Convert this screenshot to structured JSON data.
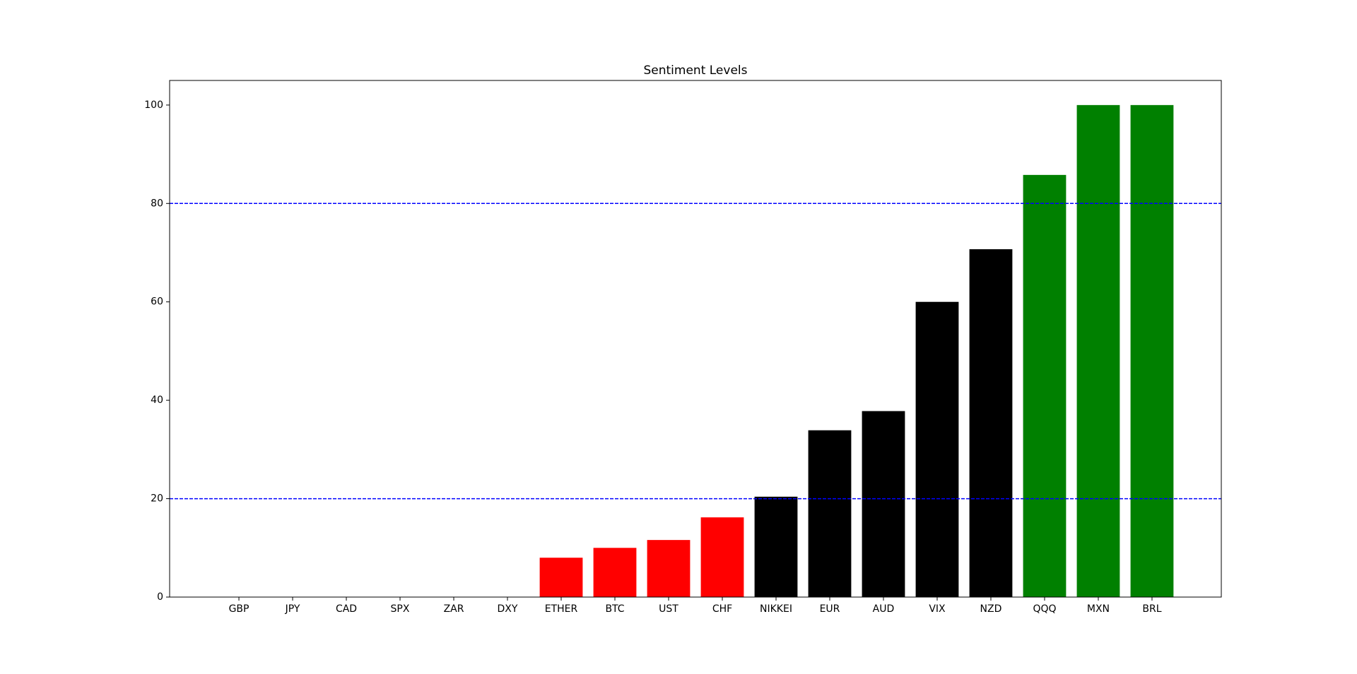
{
  "chart_data": {
    "type": "bar",
    "title": "Sentiment Levels",
    "categories": [
      "GBP",
      "JPY",
      "CAD",
      "SPX",
      "ZAR",
      "DXY",
      "ETHER",
      "BTC",
      "UST",
      "CHF",
      "NIKKEI",
      "EUR",
      "AUD",
      "VIX",
      "NZD",
      "QQQ",
      "MXN",
      "BRL"
    ],
    "values": [
      0,
      0,
      0,
      0,
      0,
      0,
      8,
      10,
      11.6,
      16.2,
      20.4,
      33.9,
      37.8,
      60,
      70.7,
      85.8,
      100,
      100
    ],
    "colors": [
      "#ff0000",
      "#ff0000",
      "#ff0000",
      "#ff0000",
      "#ff0000",
      "#ff0000",
      "#ff0000",
      "#ff0000",
      "#ff0000",
      "#ff0000",
      "#000000",
      "#000000",
      "#000000",
      "#000000",
      "#000000",
      "#008000",
      "#008000",
      "#008000"
    ],
    "ylim": [
      0,
      105
    ],
    "yticks": [
      0,
      20,
      40,
      60,
      80,
      100
    ],
    "hlines": [
      20,
      80
    ],
    "hline_color": "#0000ff",
    "grid": false
  }
}
